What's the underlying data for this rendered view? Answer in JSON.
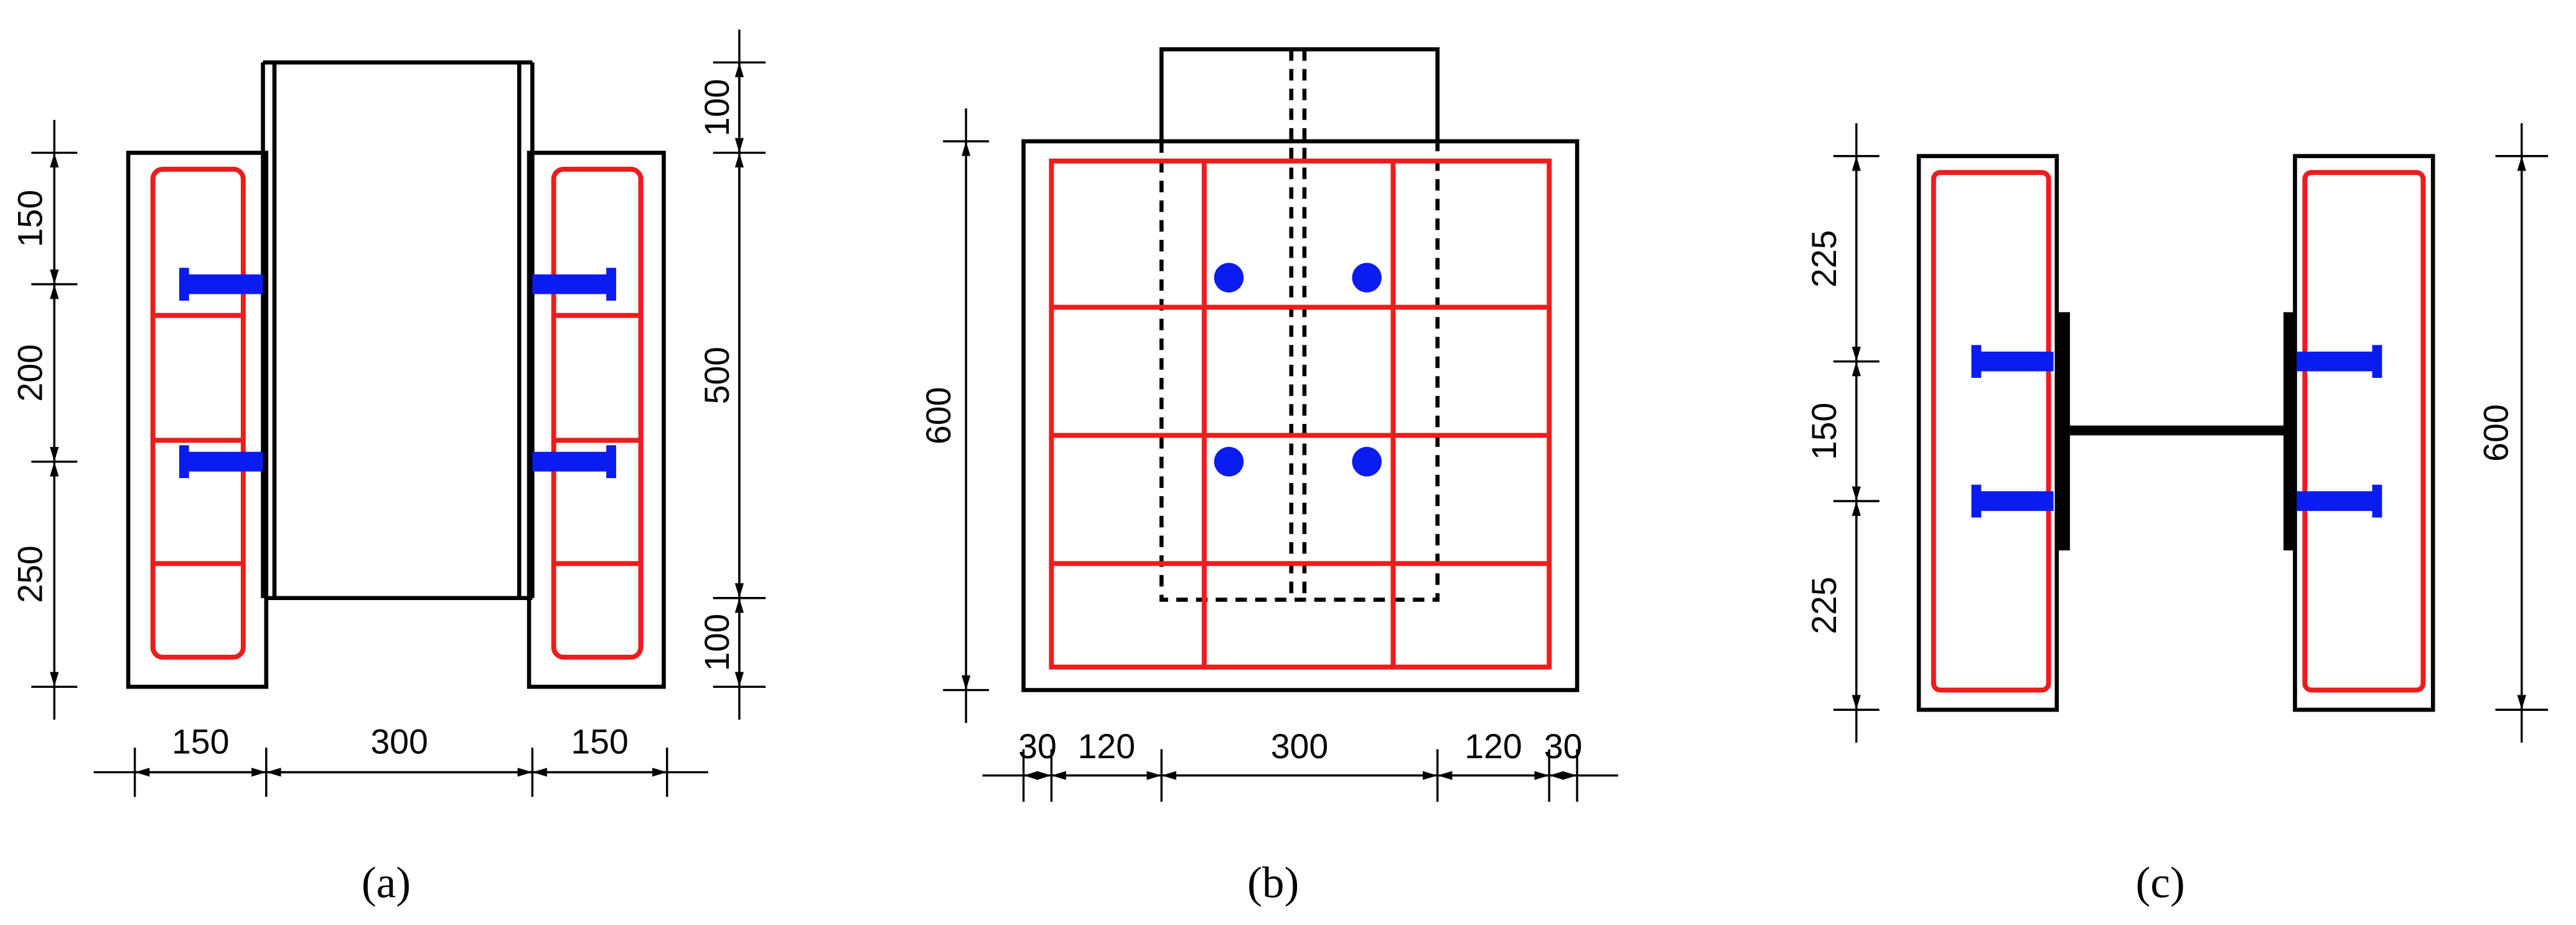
{
  "panels": [
    {
      "caption": "(a)",
      "left_dims": [
        150,
        200,
        250
      ],
      "right_dims": [
        100,
        500,
        100
      ],
      "bottom_dims": [
        150,
        300,
        150
      ]
    },
    {
      "caption": "(b)",
      "left_dims": [
        600
      ],
      "bottom_dims": [
        30,
        120,
        300,
        120,
        30
      ]
    },
    {
      "caption": "(c)",
      "left_dims": [
        225,
        150,
        225
      ],
      "right_dims": [
        600
      ]
    }
  ]
}
